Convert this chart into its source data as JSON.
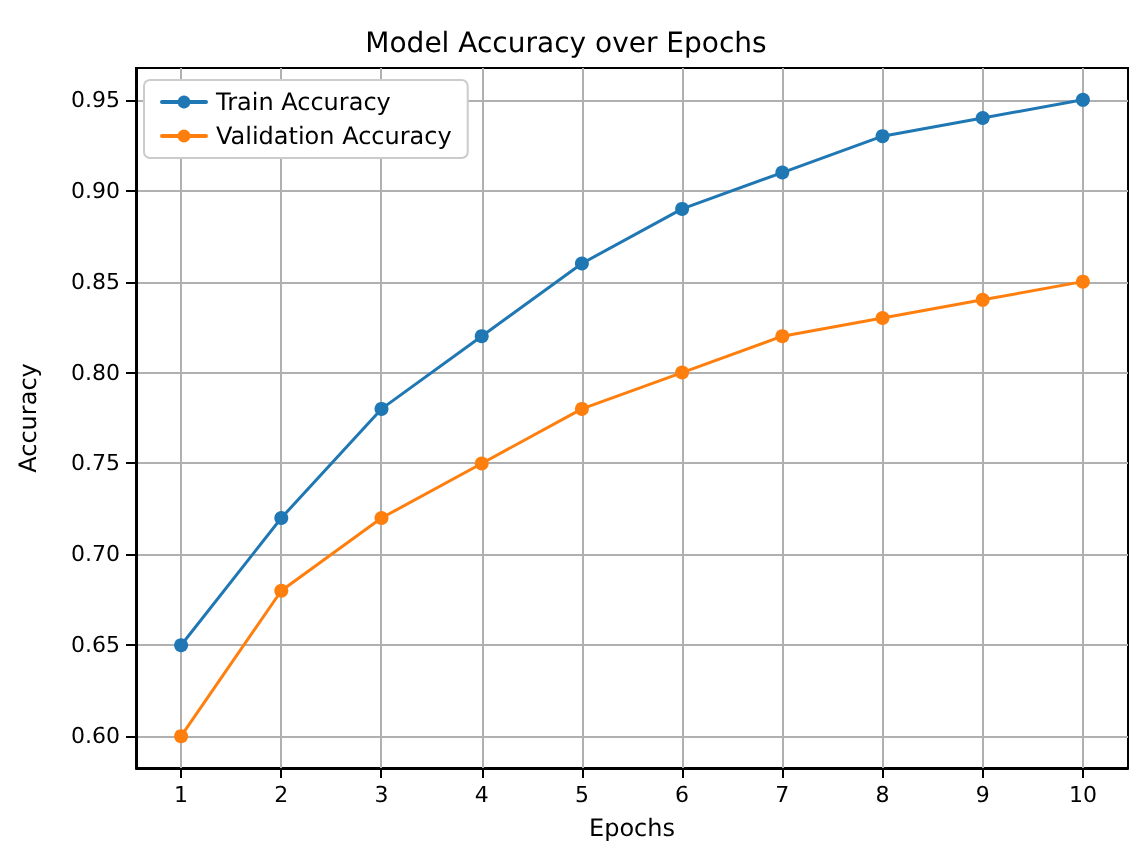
{
  "chart_data": {
    "type": "line",
    "title": "Model Accuracy over Epochs",
    "xlabel": "Epochs",
    "ylabel": "Accuracy",
    "x": [
      1,
      2,
      3,
      4,
      5,
      6,
      7,
      8,
      9,
      10
    ],
    "series": [
      {
        "name": "Train Accuracy",
        "color": "#1f77b4",
        "values": [
          0.65,
          0.72,
          0.78,
          0.82,
          0.86,
          0.89,
          0.91,
          0.93,
          0.94,
          0.95
        ]
      },
      {
        "name": "Validation Accuracy",
        "color": "#ff7f0e",
        "values": [
          0.6,
          0.68,
          0.72,
          0.75,
          0.78,
          0.8,
          0.82,
          0.83,
          0.84,
          0.85
        ]
      }
    ],
    "xlim": [
      0.55,
      10.45
    ],
    "xticks": [
      1,
      2,
      3,
      4,
      5,
      6,
      7,
      8,
      9,
      10
    ],
    "ylim": [
      0.5825,
      0.9675
    ],
    "yticks": [
      {
        "value": 0.6,
        "label": "0.60"
      },
      {
        "value": 0.65,
        "label": "0.65"
      },
      {
        "value": 0.7,
        "label": "0.70"
      },
      {
        "value": 0.75,
        "label": "0.75"
      },
      {
        "value": 0.8,
        "label": "0.80"
      },
      {
        "value": 0.85,
        "label": "0.85"
      },
      {
        "value": 0.9,
        "label": "0.90"
      },
      {
        "value": 0.95,
        "label": "0.95"
      }
    ],
    "grid": true,
    "legend": "top left",
    "marker": "circle",
    "line_style": "solid"
  }
}
